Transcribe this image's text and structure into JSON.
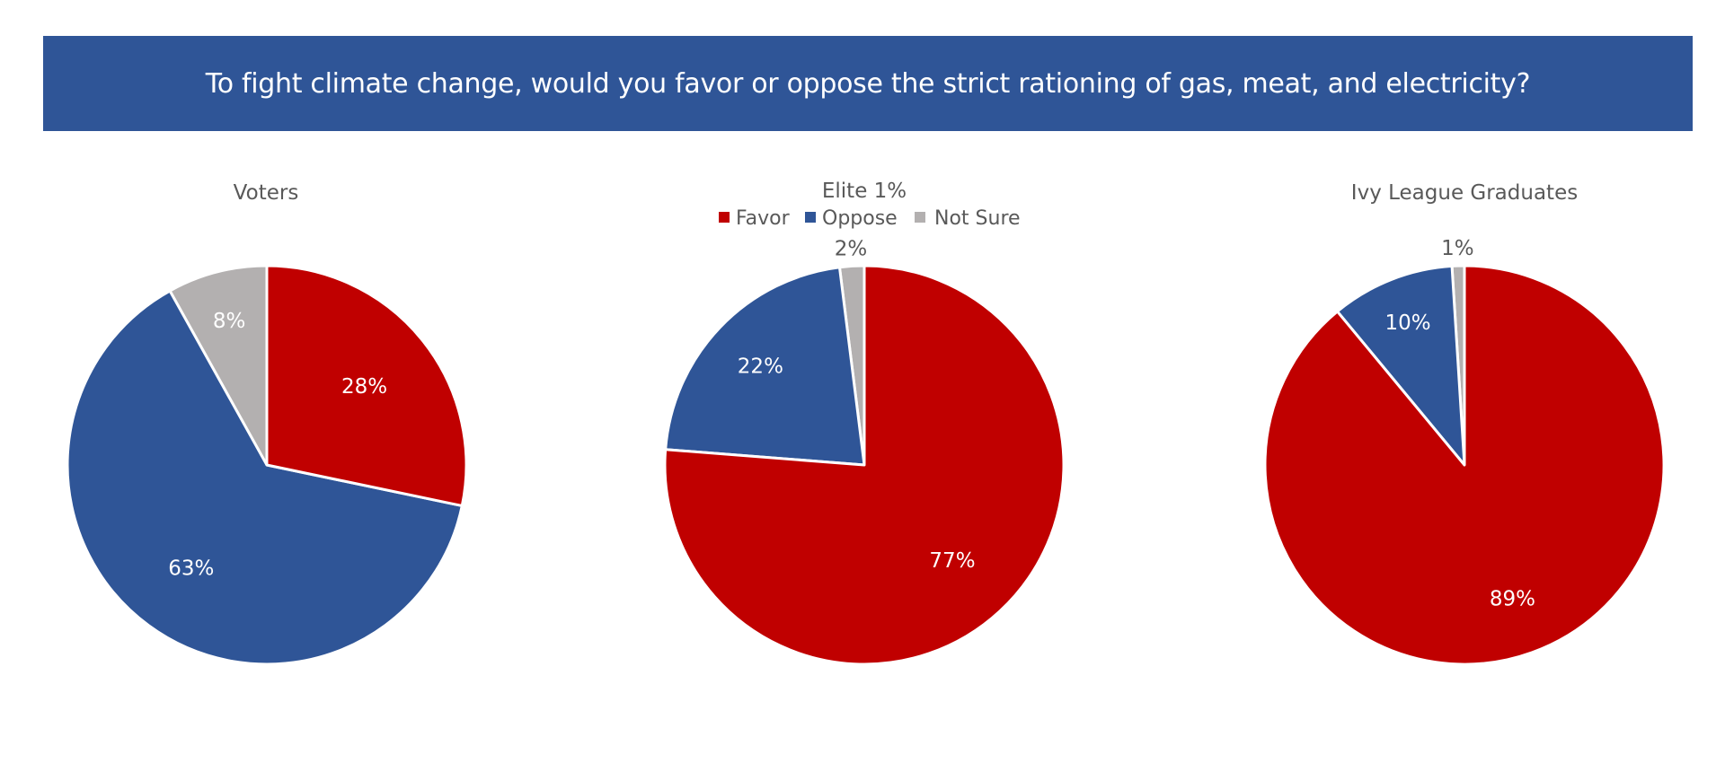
{
  "banner": {
    "title": "To fight climate change, would you favor or oppose the strict rationing of gas, meat, and electricity?",
    "background": "#2f5597"
  },
  "legend": {
    "items": [
      {
        "label": "Favor",
        "color": "#c00000"
      },
      {
        "label": "Oppose",
        "color": "#2f5597"
      },
      {
        "label": "Not Sure",
        "color": "#b3b0b0"
      }
    ]
  },
  "chart_data": [
    {
      "type": "pie",
      "title": "Voters",
      "categories": [
        "Favor",
        "Oppose",
        "Not Sure"
      ],
      "values": [
        28,
        63,
        8
      ],
      "labels": [
        "28%",
        "63%",
        "8%"
      ],
      "colors": [
        "#c00000",
        "#2f5597",
        "#b3b0b0"
      ]
    },
    {
      "type": "pie",
      "title": "Elite 1%",
      "categories": [
        "Favor",
        "Oppose",
        "Not Sure"
      ],
      "values": [
        77,
        22,
        2
      ],
      "labels": [
        "77%",
        "22%",
        "2%"
      ],
      "colors": [
        "#c00000",
        "#2f5597",
        "#b3b0b0"
      ],
      "legend": "top"
    },
    {
      "type": "pie",
      "title": "Ivy League Graduates",
      "categories": [
        "Favor",
        "Oppose",
        "Not Sure"
      ],
      "values": [
        89,
        10,
        1
      ],
      "labels": [
        "89%",
        "10%",
        "1%"
      ],
      "colors": [
        "#c00000",
        "#2f5597",
        "#b3b0b0"
      ]
    }
  ]
}
